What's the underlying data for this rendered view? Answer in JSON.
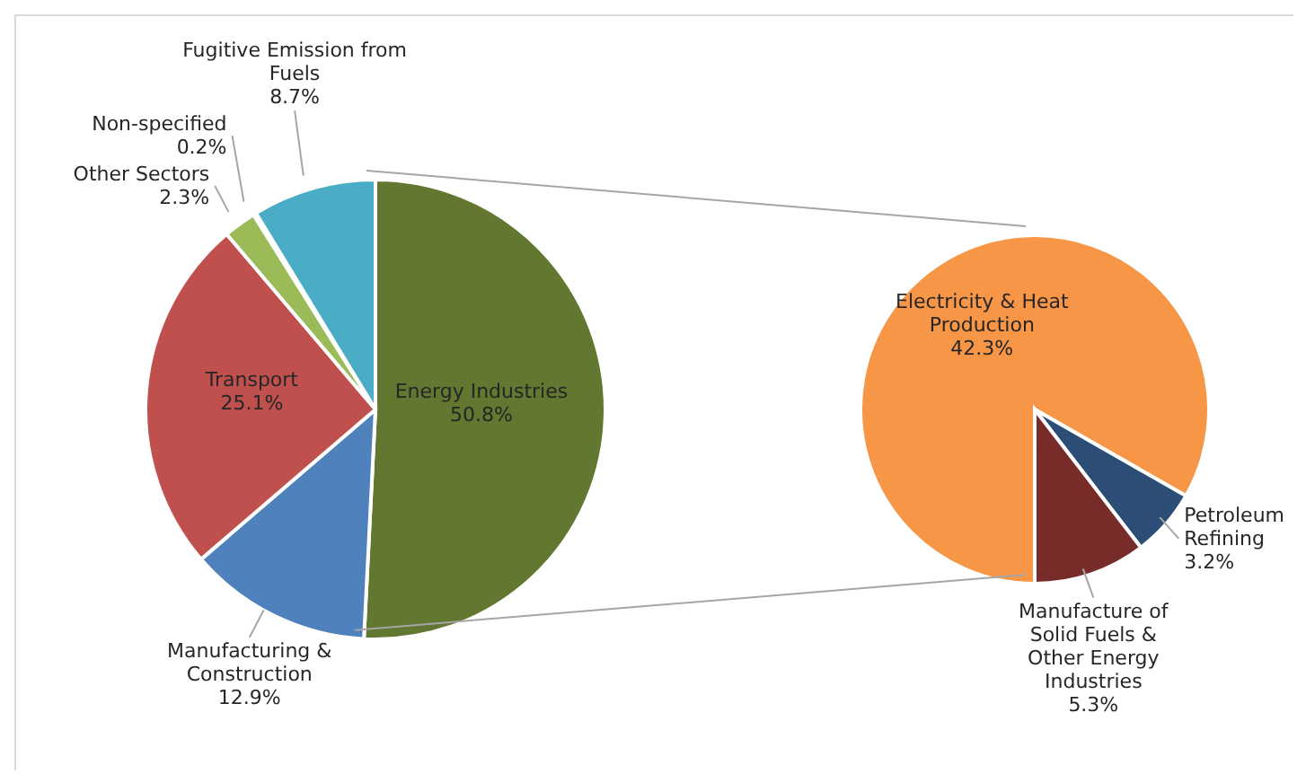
{
  "chart_data": [
    {
      "type": "pie",
      "categories": [
        "Energy Industries",
        "Manufacturing & Construction",
        "Transport",
        "Other Sectors",
        "Non-specified",
        "Fugitive Emission from Fuels"
      ],
      "values": [
        50.8,
        12.9,
        25.1,
        2.3,
        0.2,
        8.7
      ],
      "colors": [
        "#62772f",
        "#4f81bd",
        "#c0504d",
        "#9bbb59",
        "#8064a2",
        "#4bacc6"
      ],
      "value_labels": [
        "50.8%",
        "12.9%",
        "25.1%",
        "2.3%",
        "0.2%",
        "8.7%"
      ]
    },
    {
      "type": "pie",
      "categories": [
        "Electricity & Heat Production",
        "Petroleum Refining",
        "Manufacture of Solid Fuels & Other Energy Industries"
      ],
      "values": [
        42.3,
        3.2,
        5.3
      ],
      "colors": [
        "#f79646",
        "#2c4d75",
        "#772c2a"
      ],
      "value_labels": [
        "42.3%",
        "3.2%",
        "5.3%"
      ]
    }
  ]
}
